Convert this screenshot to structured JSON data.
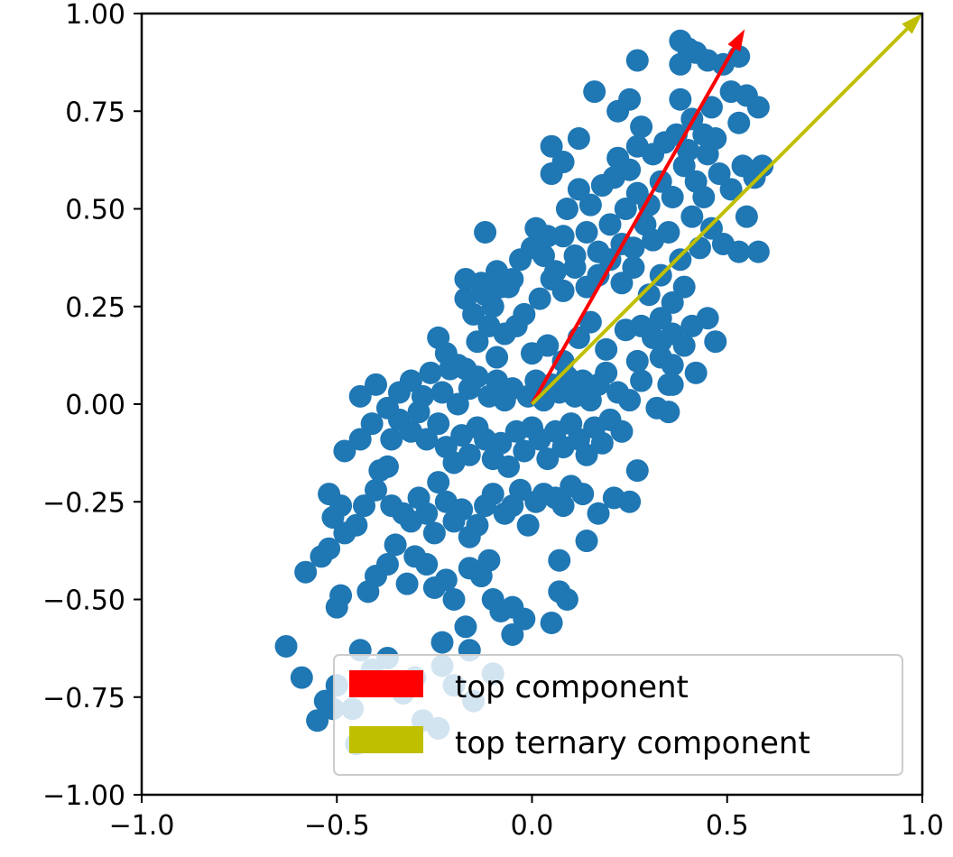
{
  "chart_data": {
    "type": "scatter",
    "title": "",
    "xlabel": "",
    "ylabel": "",
    "xlim": [
      -1.0,
      1.0
    ],
    "ylim": [
      -1.0,
      1.0
    ],
    "grid": false,
    "legend_placement": "lower-right",
    "x_ticks": [
      -1.0,
      -0.5,
      0.0,
      0.5,
      1.0
    ],
    "x_tick_labels": [
      "−1.0",
      "−0.5",
      "0.0",
      "0.5",
      "1.0"
    ],
    "y_ticks": [
      1.0,
      0.75,
      0.5,
      0.25,
      0.0,
      -0.25,
      -0.5,
      -0.75,
      -1.0
    ],
    "y_tick_labels": [
      "1.00",
      "0.75",
      "0.50",
      "0.25",
      "0.00",
      "−0.25",
      "−0.50",
      "−0.75",
      "−1.00"
    ],
    "point_color": "#1f77b4",
    "points": [
      [
        -0.63,
        -0.62
      ],
      [
        -0.59,
        -0.7
      ],
      [
        -0.58,
        -0.43
      ],
      [
        -0.55,
        -0.81
      ],
      [
        -0.53,
        -0.76
      ],
      [
        -0.51,
        -0.78
      ],
      [
        -0.5,
        -0.72
      ],
      [
        -0.5,
        -0.52
      ],
      [
        -0.49,
        -0.49
      ],
      [
        -0.46,
        -0.78
      ],
      [
        -0.45,
        -0.87
      ],
      [
        -0.44,
        -0.63
      ],
      [
        -0.41,
        -0.68
      ],
      [
        -0.39,
        -0.72
      ],
      [
        -0.37,
        -0.65
      ],
      [
        -0.33,
        -0.74
      ],
      [
        -0.3,
        -0.7
      ],
      [
        -0.28,
        -0.81
      ],
      [
        -0.24,
        -0.83
      ],
      [
        -0.2,
        -0.72
      ],
      [
        -0.15,
        -0.76
      ],
      [
        -0.1,
        -0.69
      ],
      [
        -0.54,
        -0.39
      ],
      [
        -0.52,
        -0.37
      ],
      [
        -0.48,
        -0.33
      ],
      [
        -0.42,
        -0.48
      ],
      [
        -0.4,
        -0.44
      ],
      [
        -0.37,
        -0.41
      ],
      [
        -0.35,
        -0.36
      ],
      [
        -0.32,
        -0.46
      ],
      [
        -0.3,
        -0.39
      ],
      [
        -0.27,
        -0.41
      ],
      [
        -0.25,
        -0.47
      ],
      [
        -0.22,
        -0.45
      ],
      [
        -0.2,
        -0.5
      ],
      [
        -0.16,
        -0.42
      ],
      [
        -0.13,
        -0.44
      ],
      [
        -0.11,
        -0.4
      ],
      [
        -0.1,
        -0.5
      ],
      [
        -0.08,
        -0.53
      ],
      [
        -0.05,
        -0.52
      ],
      [
        -0.05,
        -0.59
      ],
      [
        -0.02,
        -0.55
      ],
      [
        0.07,
        -0.4
      ],
      [
        0.05,
        -0.56
      ],
      [
        0.07,
        -0.48
      ],
      [
        0.09,
        -0.5
      ],
      [
        -0.17,
        -0.57
      ],
      [
        -0.23,
        -0.61
      ],
      [
        -0.23,
        -0.67
      ],
      [
        -0.16,
        -0.63
      ],
      [
        -0.52,
        -0.23
      ],
      [
        -0.51,
        -0.29
      ],
      [
        -0.49,
        -0.26
      ],
      [
        -0.45,
        -0.31
      ],
      [
        -0.43,
        -0.26
      ],
      [
        -0.4,
        -0.22
      ],
      [
        -0.37,
        -0.16
      ],
      [
        -0.36,
        -0.26
      ],
      [
        -0.33,
        -0.28
      ],
      [
        -0.31,
        -0.3
      ],
      [
        -0.29,
        -0.24
      ],
      [
        -0.27,
        -0.28
      ],
      [
        -0.25,
        -0.33
      ],
      [
        -0.24,
        -0.2
      ],
      [
        -0.22,
        -0.25
      ],
      [
        -0.2,
        -0.3
      ],
      [
        -0.18,
        -0.27
      ],
      [
        -0.16,
        -0.34
      ],
      [
        -0.14,
        -0.31
      ],
      [
        -0.12,
        -0.26
      ],
      [
        -0.1,
        -0.23
      ],
      [
        -0.07,
        -0.28
      ],
      [
        -0.05,
        -0.26
      ],
      [
        -0.03,
        -0.22
      ],
      [
        -0.01,
        -0.31
      ],
      [
        0.01,
        -0.25
      ],
      [
        0.03,
        -0.23
      ],
      [
        0.06,
        -0.24
      ],
      [
        0.08,
        -0.26
      ],
      [
        0.1,
        -0.21
      ],
      [
        0.13,
        -0.23
      ],
      [
        0.14,
        -0.35
      ],
      [
        0.17,
        -0.28
      ],
      [
        0.21,
        -0.24
      ],
      [
        0.25,
        -0.25
      ],
      [
        0.27,
        -0.17
      ],
      [
        -0.48,
        -0.12
      ],
      [
        -0.44,
        -0.09
      ],
      [
        -0.41,
        -0.05
      ],
      [
        -0.39,
        -0.17
      ],
      [
        -0.36,
        -0.09
      ],
      [
        -0.34,
        -0.04
      ],
      [
        -0.31,
        -0.07
      ],
      [
        -0.29,
        -0.02
      ],
      [
        -0.27,
        -0.09
      ],
      [
        -0.24,
        -0.05
      ],
      [
        -0.22,
        -0.11
      ],
      [
        -0.2,
        -0.15
      ],
      [
        -0.18,
        -0.08
      ],
      [
        -0.16,
        -0.13
      ],
      [
        -0.14,
        -0.06
      ],
      [
        -0.12,
        -0.09
      ],
      [
        -0.1,
        -0.14
      ],
      [
        -0.08,
        -0.1
      ],
      [
        -0.06,
        -0.16
      ],
      [
        -0.04,
        -0.07
      ],
      [
        -0.02,
        -0.12
      ],
      [
        0.0,
        -0.06
      ],
      [
        0.02,
        -0.09
      ],
      [
        0.04,
        -0.14
      ],
      [
        0.06,
        -0.07
      ],
      [
        0.08,
        -0.11
      ],
      [
        0.1,
        -0.05
      ],
      [
        0.12,
        -0.09
      ],
      [
        0.14,
        -0.13
      ],
      [
        0.16,
        -0.06
      ],
      [
        0.18,
        -0.1
      ],
      [
        0.2,
        -0.04
      ],
      [
        0.23,
        -0.07
      ],
      [
        -0.44,
        0.02
      ],
      [
        -0.4,
        0.05
      ],
      [
        -0.37,
        -0.01
      ],
      [
        -0.34,
        0.03
      ],
      [
        -0.31,
        0.06
      ],
      [
        -0.28,
        0.02
      ],
      [
        -0.26,
        0.08
      ],
      [
        -0.23,
        0.03
      ],
      [
        -0.21,
        0.09
      ],
      [
        -0.19,
        0.0
      ],
      [
        -0.16,
        0.04
      ],
      [
        -0.14,
        0.07
      ],
      [
        -0.11,
        0.02
      ],
      [
        -0.09,
        0.06
      ],
      [
        -0.07,
        0.01
      ],
      [
        -0.05,
        0.04
      ],
      [
        -0.01,
        0.02
      ],
      [
        0.01,
        0.06
      ],
      [
        0.03,
        0.01
      ],
      [
        0.05,
        0.05
      ],
      [
        0.07,
        0.03
      ],
      [
        0.09,
        0.07
      ],
      [
        0.11,
        0.02
      ],
      [
        0.13,
        0.06
      ],
      [
        0.15,
        0.01
      ],
      [
        0.17,
        0.05
      ],
      [
        0.19,
        0.08
      ],
      [
        0.22,
        0.03
      ],
      [
        0.25,
        0.01
      ],
      [
        0.28,
        0.06
      ],
      [
        0.32,
        -0.01
      ],
      [
        0.35,
        0.05
      ],
      [
        0.35,
        -0.02
      ],
      [
        -0.24,
        0.17
      ],
      [
        -0.22,
        0.13
      ],
      [
        -0.19,
        0.1
      ],
      [
        -0.17,
        0.09
      ],
      [
        -0.14,
        0.16
      ],
      [
        -0.11,
        0.2
      ],
      [
        -0.09,
        0.12
      ],
      [
        -0.07,
        0.18
      ],
      [
        -0.04,
        0.2
      ],
      [
        0.0,
        0.13
      ],
      [
        0.04,
        0.15
      ],
      [
        0.08,
        0.11
      ],
      [
        0.12,
        0.17
      ],
      [
        0.15,
        0.21
      ],
      [
        0.19,
        0.14
      ],
      [
        0.24,
        0.19
      ],
      [
        0.28,
        0.2
      ],
      [
        0.33,
        0.16
      ],
      [
        0.36,
        0.18
      ],
      [
        0.41,
        0.2
      ],
      [
        0.45,
        0.22
      ],
      [
        0.47,
        0.16
      ],
      [
        -0.17,
        0.27
      ],
      [
        -0.15,
        0.23
      ],
      [
        -0.12,
        0.28
      ],
      [
        -0.1,
        0.25
      ],
      [
        -0.08,
        0.3
      ],
      [
        -0.05,
        0.32
      ],
      [
        -0.02,
        0.23
      ],
      [
        0.02,
        0.27
      ],
      [
        0.05,
        0.32
      ],
      [
        0.08,
        0.29
      ],
      [
        0.11,
        0.35
      ],
      [
        0.14,
        0.3
      ],
      [
        0.17,
        0.33
      ],
      [
        0.2,
        0.37
      ],
      [
        0.23,
        0.31
      ],
      [
        0.26,
        0.35
      ],
      [
        0.3,
        0.28
      ],
      [
        0.33,
        0.33
      ],
      [
        0.36,
        0.26
      ],
      [
        0.39,
        0.3
      ],
      [
        -0.17,
        0.32
      ],
      [
        -0.13,
        0.31
      ],
      [
        -0.09,
        0.34
      ],
      [
        -0.06,
        0.3
      ],
      [
        -0.03,
        0.37
      ],
      [
        0.0,
        0.4
      ],
      [
        0.03,
        0.38
      ],
      [
        0.06,
        0.34
      ],
      [
        0.08,
        0.43
      ],
      [
        0.11,
        0.38
      ],
      [
        0.14,
        0.44
      ],
      [
        0.17,
        0.39
      ],
      [
        0.2,
        0.46
      ],
      [
        0.23,
        0.41
      ],
      [
        0.26,
        0.4
      ],
      [
        0.29,
        0.46
      ],
      [
        0.31,
        0.42
      ],
      [
        0.35,
        0.44
      ],
      [
        0.38,
        0.37
      ],
      [
        0.43,
        0.4
      ],
      [
        0.46,
        0.45
      ],
      [
        0.49,
        0.41
      ],
      [
        0.53,
        0.39
      ],
      [
        0.55,
        0.48
      ],
      [
        0.58,
        0.39
      ],
      [
        -0.12,
        0.44
      ],
      [
        0.01,
        0.45
      ],
      [
        0.04,
        0.43
      ],
      [
        0.09,
        0.5
      ],
      [
        0.12,
        0.55
      ],
      [
        0.15,
        0.51
      ],
      [
        0.18,
        0.56
      ],
      [
        0.21,
        0.58
      ],
      [
        0.24,
        0.5
      ],
      [
        0.27,
        0.54
      ],
      [
        0.3,
        0.51
      ],
      [
        0.33,
        0.57
      ],
      [
        0.36,
        0.53
      ],
      [
        0.39,
        0.61
      ],
      [
        0.42,
        0.57
      ],
      [
        0.45,
        0.64
      ],
      [
        0.48,
        0.59
      ],
      [
        0.51,
        0.55
      ],
      [
        0.54,
        0.61
      ],
      [
        0.57,
        0.58
      ],
      [
        0.59,
        0.61
      ],
      [
        0.05,
        0.66
      ],
      [
        0.08,
        0.62
      ],
      [
        0.05,
        0.59
      ],
      [
        0.12,
        0.68
      ],
      [
        0.22,
        0.63
      ],
      [
        0.25,
        0.6
      ],
      [
        0.27,
        0.66
      ],
      [
        0.31,
        0.64
      ],
      [
        0.34,
        0.67
      ],
      [
        0.37,
        0.69
      ],
      [
        0.41,
        0.73
      ],
      [
        0.44,
        0.69
      ],
      [
        0.47,
        0.68
      ],
      [
        0.53,
        0.72
      ],
      [
        0.16,
        0.8
      ],
      [
        0.22,
        0.75
      ],
      [
        0.25,
        0.78
      ],
      [
        0.28,
        0.71
      ],
      [
        0.38,
        0.78
      ],
      [
        0.46,
        0.76
      ],
      [
        0.51,
        0.8
      ],
      [
        0.55,
        0.79
      ],
      [
        0.58,
        0.76
      ],
      [
        0.27,
        0.88
      ],
      [
        0.38,
        0.87
      ],
      [
        0.42,
        0.9
      ],
      [
        0.49,
        0.87
      ],
      [
        0.53,
        0.89
      ],
      [
        0.38,
        0.93
      ],
      [
        0.4,
        0.91
      ],
      [
        0.45,
        0.88
      ],
      [
        0.4,
        0.65
      ],
      [
        0.41,
        0.48
      ],
      [
        0.44,
        0.53
      ],
      [
        0.33,
        0.22
      ],
      [
        0.31,
        0.17
      ],
      [
        0.27,
        0.11
      ],
      [
        0.36,
        0.1
      ],
      [
        0.39,
        0.15
      ],
      [
        0.42,
        0.08
      ],
      [
        0.36,
        0.05
      ],
      [
        0.33,
        0.12
      ]
    ],
    "arrows": [
      {
        "name": "top component",
        "color": "#ff0000",
        "start": [
          0.0,
          0.0
        ],
        "end": [
          0.545,
          0.96
        ]
      },
      {
        "name": "top ternary component",
        "color": "#bfbf00",
        "start": [
          0.0,
          0.0
        ],
        "end": [
          1.0,
          1.0
        ]
      }
    ],
    "legend": [
      {
        "label": "top component",
        "color": "#ff0000"
      },
      {
        "label": "top ternary component",
        "color": "#bfbf00"
      }
    ]
  }
}
